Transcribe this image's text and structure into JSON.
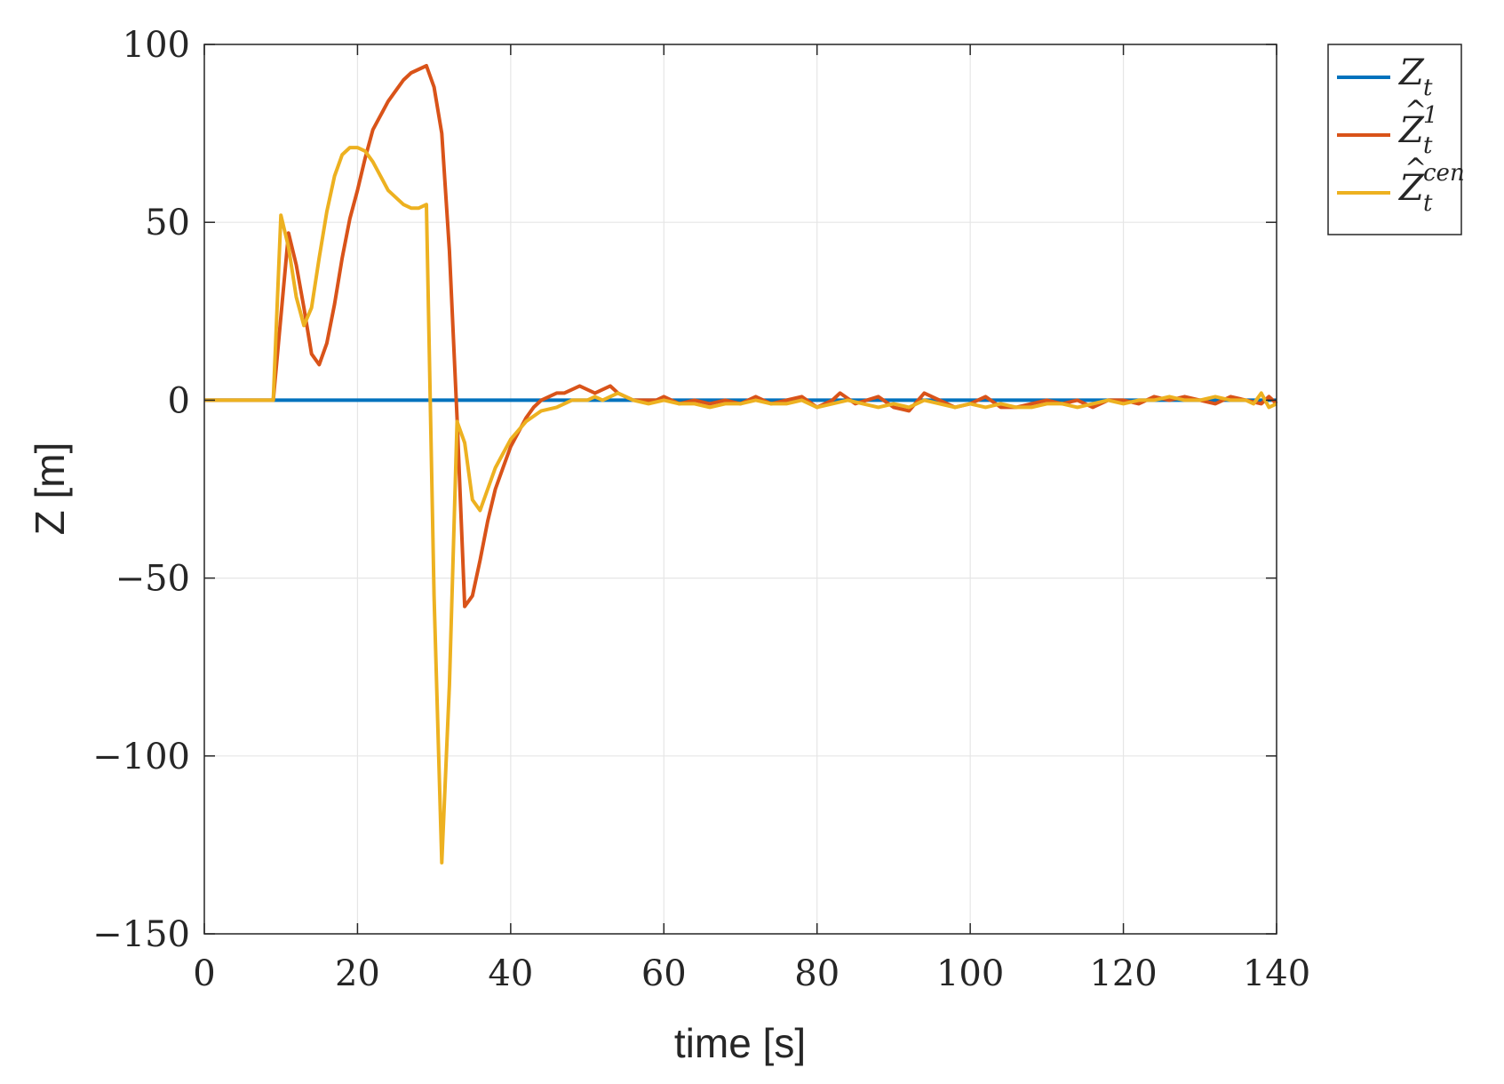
{
  "chart_data": {
    "type": "line",
    "xlabel": "time [s]",
    "ylabel": "Z [m]",
    "xlim": [
      0,
      140
    ],
    "ylim": [
      -150,
      100
    ],
    "xticks": [
      0,
      20,
      40,
      60,
      80,
      100,
      120,
      140
    ],
    "yticks": [
      100,
      50,
      0,
      -50,
      -100,
      -150
    ],
    "ytick_labels": [
      "100",
      "50",
      "0",
      "−50",
      "−100",
      "−150"
    ],
    "grid": true,
    "legend_position": "outside-top-right",
    "series": [
      {
        "name": "Z_t",
        "legend": {
          "base": "Z",
          "sub": "t",
          "sup": "",
          "hat": false
        },
        "color": "#0072BD",
        "x": [
          0,
          140
        ],
        "y": [
          0,
          0
        ]
      },
      {
        "name": "Ẑ_t^1",
        "legend": {
          "base": "Z",
          "sub": "t",
          "sup": "1",
          "hat": true
        },
        "color": "#D95319",
        "x": [
          0,
          9,
          11,
          12,
          13,
          14,
          15,
          16,
          17,
          18,
          19,
          20,
          21,
          22,
          23,
          24,
          25,
          26,
          27,
          28,
          29,
          30,
          31,
          32,
          33,
          34,
          35,
          36,
          37,
          38,
          39,
          40,
          41,
          42,
          43,
          44,
          45,
          46,
          47,
          48,
          49,
          50,
          51,
          52,
          53,
          54,
          55,
          56,
          57,
          58,
          59,
          60,
          62,
          64,
          66,
          68,
          70,
          72,
          74,
          76,
          78,
          80,
          82,
          83,
          85,
          88,
          90,
          92,
          94,
          96,
          98,
          100,
          102,
          104,
          106,
          108,
          110,
          112,
          114,
          116,
          118,
          120,
          122,
          124,
          126,
          128,
          130,
          132,
          134,
          136,
          138,
          139,
          140
        ],
        "y": [
          0,
          0,
          47,
          38,
          26,
          13,
          10,
          16,
          27,
          40,
          51,
          59,
          68,
          76,
          80,
          84,
          87,
          90,
          92,
          93,
          94,
          88,
          75,
          42,
          -5,
          -58,
          -55,
          -45,
          -34,
          -25,
          -19,
          -13,
          -9,
          -5,
          -2,
          0,
          1,
          2,
          2,
          3,
          4,
          3,
          2,
          3,
          4,
          2,
          1,
          0,
          0,
          0,
          0,
          1,
          -1,
          0,
          -1,
          0,
          -1,
          1,
          -1,
          0,
          1,
          -2,
          0,
          2,
          -1,
          1,
          -2,
          -3,
          2,
          0,
          -2,
          -1,
          1,
          -2,
          -2,
          -1,
          0,
          -1,
          0,
          -2,
          0,
          0,
          -1,
          1,
          0,
          1,
          0,
          -1,
          1,
          0,
          -1,
          1,
          -1
        ]
      },
      {
        "name": "Ẑ_t^cen",
        "legend": {
          "base": "Z",
          "sub": "t",
          "sup": "cen",
          "hat": true
        },
        "color": "#EDB120",
        "x": [
          0,
          9,
          10,
          11,
          12,
          13,
          14,
          15,
          16,
          17,
          18,
          19,
          20,
          21,
          22,
          23,
          24,
          25,
          26,
          27,
          28,
          29,
          30,
          31,
          32,
          33,
          34,
          35,
          36,
          37,
          38,
          39,
          40,
          42,
          44,
          46,
          48,
          50,
          51,
          52,
          53,
          54,
          55,
          56,
          58,
          60,
          62,
          64,
          66,
          68,
          70,
          72,
          74,
          76,
          78,
          80,
          82,
          84,
          86,
          88,
          90,
          92,
          94,
          96,
          98,
          100,
          102,
          104,
          106,
          108,
          110,
          112,
          114,
          116,
          118,
          120,
          122,
          124,
          126,
          128,
          130,
          132,
          134,
          136,
          137,
          138,
          139,
          140
        ],
        "y": [
          0,
          0,
          52,
          43,
          29,
          21,
          26,
          40,
          53,
          63,
          69,
          71,
          71,
          70,
          67,
          63,
          59,
          57,
          55,
          54,
          54,
          55,
          -55,
          -130,
          -80,
          -6,
          -12,
          -28,
          -31,
          -25,
          -19,
          -15,
          -11,
          -6,
          -3,
          -2,
          0,
          0,
          1,
          0,
          1,
          2,
          1,
          0,
          -1,
          0,
          -1,
          -1,
          -2,
          -1,
          -1,
          0,
          -1,
          -1,
          0,
          -2,
          -1,
          0,
          -1,
          -2,
          -1,
          -2,
          0,
          -1,
          -2,
          -1,
          -2,
          -1,
          -2,
          -2,
          -1,
          -1,
          -2,
          -1,
          0,
          -1,
          0,
          0,
          1,
          0,
          0,
          1,
          0,
          0,
          -1,
          2,
          -2,
          -1
        ]
      }
    ]
  }
}
